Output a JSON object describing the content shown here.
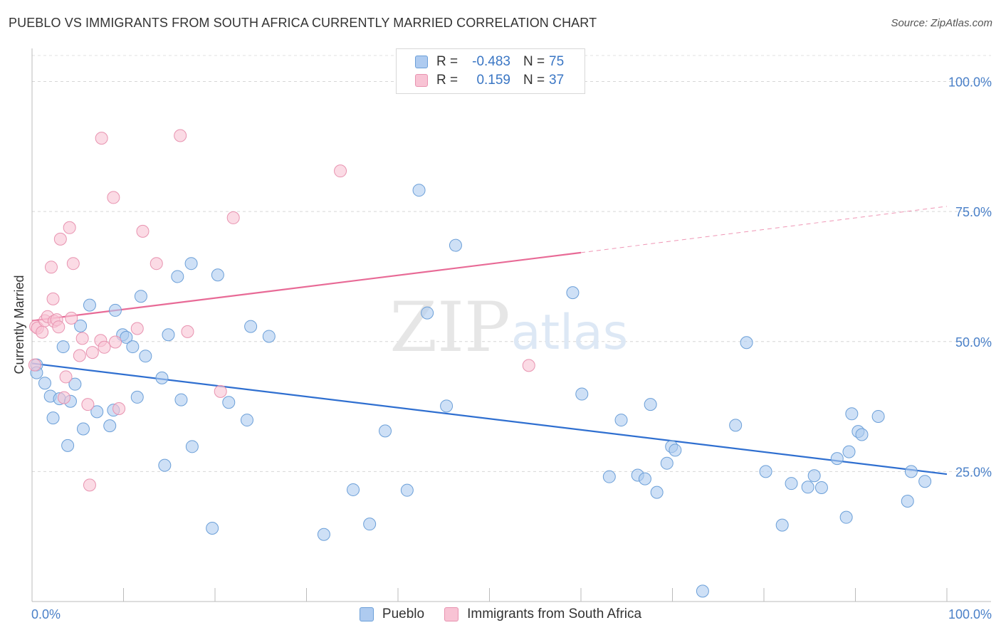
{
  "title": "PUEBLO VS IMMIGRANTS FROM SOUTH AFRICA CURRENTLY MARRIED CORRELATION CHART",
  "source": "Source: ZipAtlas.com",
  "watermark": {
    "zip": "ZIP",
    "atlas": "atlas"
  },
  "legend": {
    "rows": [
      {
        "r_label": "R =",
        "r_value": "-0.483",
        "n_label": "N =",
        "n_value": "75",
        "color": "#aecbf0",
        "border": "#6b9fd8"
      },
      {
        "r_label": "R =",
        "r_value": "0.159",
        "n_label": "N =",
        "n_value": "37",
        "color": "#f8c3d4",
        "border": "#e893b0"
      }
    ]
  },
  "bottom_legend": [
    {
      "label": "Pueblo",
      "color": "#aecbf0",
      "border": "#6b9fd8"
    },
    {
      "label": "Immigrants from South Africa",
      "color": "#f8c3d4",
      "border": "#e893b0"
    }
  ],
  "chart_data": {
    "type": "scatter",
    "title": "PUEBLO VS IMMIGRANTS FROM SOUTH AFRICA CURRENTLY MARRIED CORRELATION CHART",
    "xlabel": "",
    "ylabel": "Currently Married",
    "xlim": [
      0,
      100
    ],
    "ylim": [
      0,
      105
    ],
    "x_tick_labels": [
      "0.0%",
      "100.0%"
    ],
    "y_ticks": [
      25,
      50,
      75,
      100
    ],
    "y_tick_labels": [
      "25.0%",
      "50.0%",
      "75.0%",
      "100.0%"
    ],
    "grid": true,
    "legend_position": "top-center",
    "series": [
      {
        "name": "Pueblo",
        "color": "#6b9fd8",
        "fill": "#aecbf0",
        "trend": {
          "x": [
            0,
            100
          ],
          "y": [
            45.8,
            24.5
          ],
          "color": "#2f6fd0",
          "dashed_from": null
        },
        "points": [
          [
            0.5,
            45.5
          ],
          [
            0.5,
            44
          ],
          [
            1.4,
            42
          ],
          [
            2,
            39.5
          ],
          [
            2.3,
            35.3
          ],
          [
            3,
            39
          ],
          [
            3.4,
            49
          ],
          [
            3.9,
            30
          ],
          [
            4.2,
            38.5
          ],
          [
            4.7,
            41.8
          ],
          [
            5.3,
            53
          ],
          [
            5.6,
            33.2
          ],
          [
            6.3,
            57
          ],
          [
            7.1,
            36.5
          ],
          [
            8.5,
            33.8
          ],
          [
            8.9,
            36.8
          ],
          [
            9.1,
            56
          ],
          [
            9.9,
            51.3
          ],
          [
            10.3,
            50.8
          ],
          [
            11,
            49
          ],
          [
            11.5,
            39.3
          ],
          [
            11.9,
            58.7
          ],
          [
            12.4,
            47.2
          ],
          [
            14.2,
            43
          ],
          [
            14.5,
            26.2
          ],
          [
            14.9,
            51.3
          ],
          [
            16.3,
            38.8
          ],
          [
            17.4,
            65
          ],
          [
            17.5,
            29.8
          ],
          [
            15.9,
            62.5
          ],
          [
            19.7,
            14.1
          ],
          [
            20.3,
            62.8
          ],
          [
            21.5,
            38.3
          ],
          [
            23.5,
            34.9
          ],
          [
            23.9,
            52.9
          ],
          [
            25.9,
            51
          ],
          [
            31.9,
            12.9
          ],
          [
            35.1,
            21.5
          ],
          [
            36.9,
            14.9
          ],
          [
            38.6,
            32.8
          ],
          [
            41,
            21.4
          ],
          [
            42.3,
            79.1
          ],
          [
            43.2,
            55.5
          ],
          [
            45.3,
            37.6
          ],
          [
            46.3,
            68.5
          ],
          [
            59.1,
            59.4
          ],
          [
            60.1,
            39.9
          ],
          [
            64.4,
            34.9
          ],
          [
            63.1,
            24
          ],
          [
            66.2,
            24.3
          ],
          [
            67,
            23.6
          ],
          [
            67.6,
            37.9
          ],
          [
            69.4,
            26.6
          ],
          [
            68.3,
            21
          ],
          [
            69.9,
            29.8
          ],
          [
            70.3,
            29.1
          ],
          [
            73.3,
            2
          ],
          [
            76.9,
            33.9
          ],
          [
            78.1,
            49.8
          ],
          [
            80.2,
            25
          ],
          [
            82,
            14.7
          ],
          [
            83,
            22.7
          ],
          [
            84.8,
            22
          ],
          [
            85.5,
            24.2
          ],
          [
            86.3,
            21.9
          ],
          [
            88,
            27.5
          ],
          [
            89,
            16.2
          ],
          [
            89.3,
            28.8
          ],
          [
            89.6,
            36.1
          ],
          [
            90.3,
            32.7
          ],
          [
            90.7,
            32.1
          ],
          [
            92.5,
            35.6
          ],
          [
            95.7,
            19.3
          ],
          [
            96.1,
            25
          ],
          [
            97.6,
            23.1
          ]
        ]
      },
      {
        "name": "Immigrants from South Africa",
        "color": "#e893b0",
        "fill": "#f8c3d4",
        "trend": {
          "x": [
            0,
            60,
            100
          ],
          "y": [
            54,
            67.1,
            76
          ],
          "color": "#e86a96",
          "dashed_from": 60
        },
        "points": [
          [
            0.3,
            45.5
          ],
          [
            0.4,
            52.9
          ],
          [
            0.6,
            52.6
          ],
          [
            1.1,
            51.8
          ],
          [
            1.4,
            54
          ],
          [
            1.7,
            54.8
          ],
          [
            2.1,
            64.3
          ],
          [
            2.3,
            58.2
          ],
          [
            2.4,
            53.9
          ],
          [
            2.7,
            54.2
          ],
          [
            2.9,
            52.8
          ],
          [
            3.1,
            69.7
          ],
          [
            3.5,
            39.2
          ],
          [
            3.7,
            43.2
          ],
          [
            4.1,
            71.9
          ],
          [
            4.3,
            54.5
          ],
          [
            4.5,
            65
          ],
          [
            5.2,
            47.3
          ],
          [
            5.5,
            50.6
          ],
          [
            6.1,
            37.9
          ],
          [
            6.3,
            22.4
          ],
          [
            6.6,
            47.9
          ],
          [
            7.5,
            50.2
          ],
          [
            7.6,
            89.1
          ],
          [
            7.9,
            48.9
          ],
          [
            8.9,
            77.7
          ],
          [
            9.1,
            49.9
          ],
          [
            9.5,
            37.1
          ],
          [
            11.5,
            52.5
          ],
          [
            12.1,
            71.2
          ],
          [
            13.6,
            65
          ],
          [
            16.2,
            89.6
          ],
          [
            17,
            51.9
          ],
          [
            20.6,
            40.4
          ],
          [
            22,
            73.8
          ],
          [
            33.7,
            82.8
          ],
          [
            54.3,
            45.4
          ]
        ]
      }
    ]
  }
}
